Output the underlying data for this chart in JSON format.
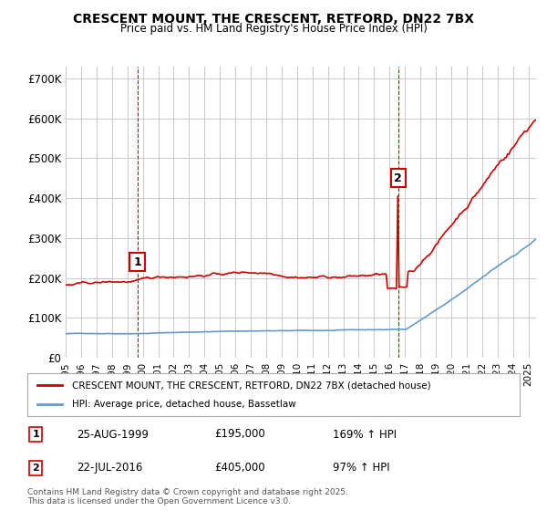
{
  "title": "CRESCENT MOUNT, THE CRESCENT, RETFORD, DN22 7BX",
  "subtitle": "Price paid vs. HM Land Registry's House Price Index (HPI)",
  "ylabel_format": "£{0}K",
  "yticks": [
    0,
    100000,
    200000,
    300000,
    400000,
    500000,
    600000,
    700000
  ],
  "ytick_labels": [
    "£0",
    "£100K",
    "£200K",
    "£300K",
    "£400K",
    "£500K",
    "£600K",
    "£700K"
  ],
  "ylim": [
    0,
    730000
  ],
  "xlim_start": 1995.0,
  "xlim_end": 2025.5,
  "sale1_x": 1999.646,
  "sale1_y": 195000,
  "sale1_label": "1",
  "sale1_date": "25-AUG-1999",
  "sale1_price": "£195,000",
  "sale1_hpi": "169% ↑ HPI",
  "sale2_x": 2016.554,
  "sale2_y": 405000,
  "sale2_label": "2",
  "sale2_date": "22-JUL-2016",
  "sale2_price": "£405,000",
  "sale2_hpi": "97% ↑ HPI",
  "line1_color": "#cc0000",
  "line2_color": "#6699cc",
  "vline_color": "#cc0000",
  "grid_color": "#cccccc",
  "bg_color": "#ffffff",
  "legend_label1": "CRESCENT MOUNT, THE CRESCENT, RETFORD, DN22 7BX (detached house)",
  "legend_label2": "HPI: Average price, detached house, Bassetlaw",
  "footer": "Contains HM Land Registry data © Crown copyright and database right 2025.\nThis data is licensed under the Open Government Licence v3.0."
}
